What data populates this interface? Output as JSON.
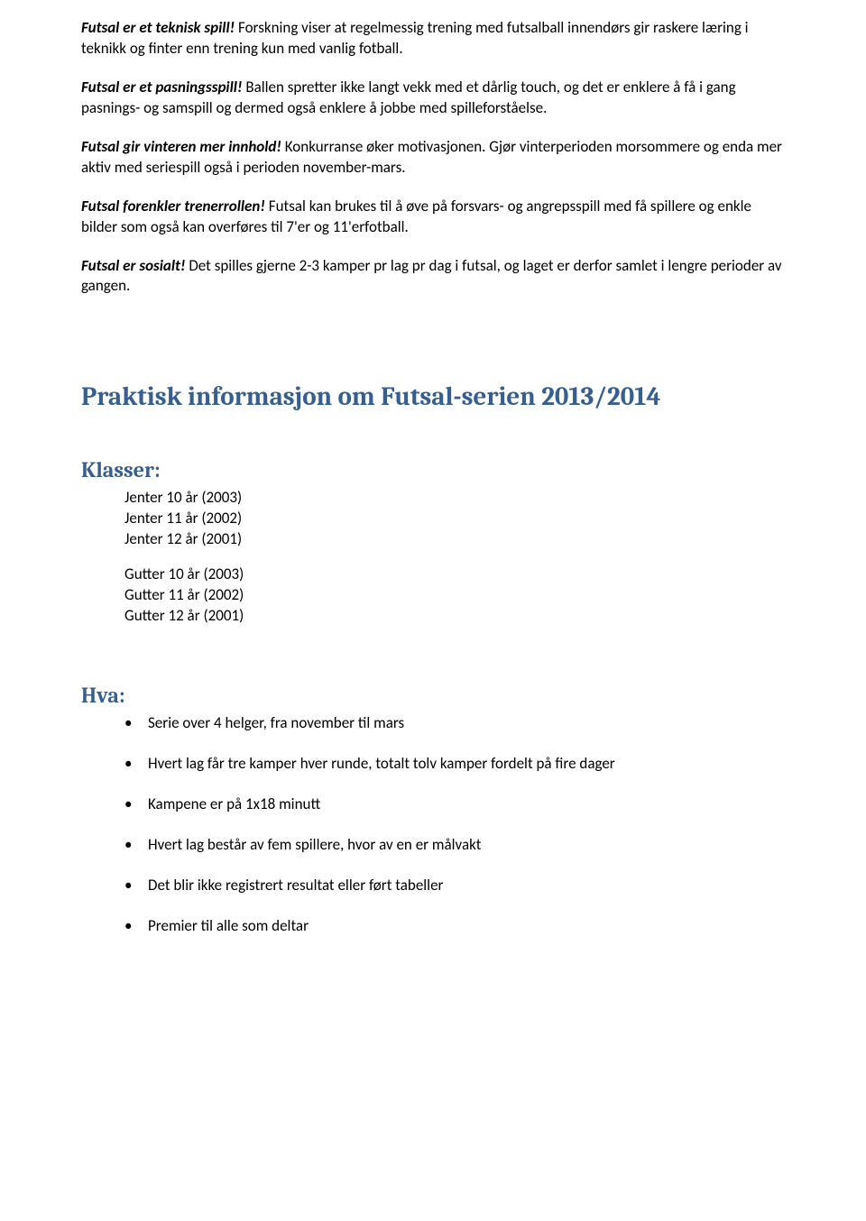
{
  "paragraphs": [
    {
      "lead": "Futsal er et teknisk spill!",
      "body": " Forskning viser at regelmessig trening med futsalball innendørs gir raskere læring i teknikk og finter enn trening kun med vanlig fotball."
    },
    {
      "lead": "Futsal er et pasningsspill!",
      "body": " Ballen spretter ikke langt vekk med et dårlig touch, og det er enklere å få i gang pasnings- og samspill og dermed også enklere å jobbe med spilleforståelse."
    },
    {
      "lead": "Futsal gir vinteren mer innhold!",
      "body": " Konkurranse øker motivasjonen. Gjør vinterperioden morsommere og enda mer aktiv med seriespill også i perioden november-mars."
    },
    {
      "lead": "Futsal forenkler trenerrollen!",
      "body": "  Futsal kan brukes til å øve på forsvars- og angrepsspill med få spillere og enkle bilder som også kan overføres til 7'er og 11'erfotball."
    },
    {
      "lead": "Futsal er sosialt!",
      "body": " Det spilles gjerne 2-3 kamper pr lag pr dag i futsal, og laget er derfor samlet i lengre perioder av gangen."
    }
  ],
  "mainHeading": "Praktisk informasjon om Futsal-serien 2013/2014",
  "klasser": {
    "heading": "Klasser:",
    "group1": [
      "Jenter 10 år (2003)",
      "Jenter 11 år (2002)",
      "Jenter 12 år (2001)"
    ],
    "group2": [
      "Gutter 10 år (2003)",
      "Gutter 11 år (2002)",
      "Gutter 12 år (2001)"
    ]
  },
  "hva": {
    "heading": "Hva:",
    "items": [
      "Serie over 4 helger, fra november til mars",
      "Hvert lag får tre kamper hver runde, totalt tolv kamper fordelt på fire dager",
      "Kampene er på 1x18 minutt",
      "Hvert lag består av fem spillere, hvor av en er målvakt",
      "Det blir ikke registrert resultat eller ført tabeller",
      "Premier til alle som deltar"
    ]
  }
}
